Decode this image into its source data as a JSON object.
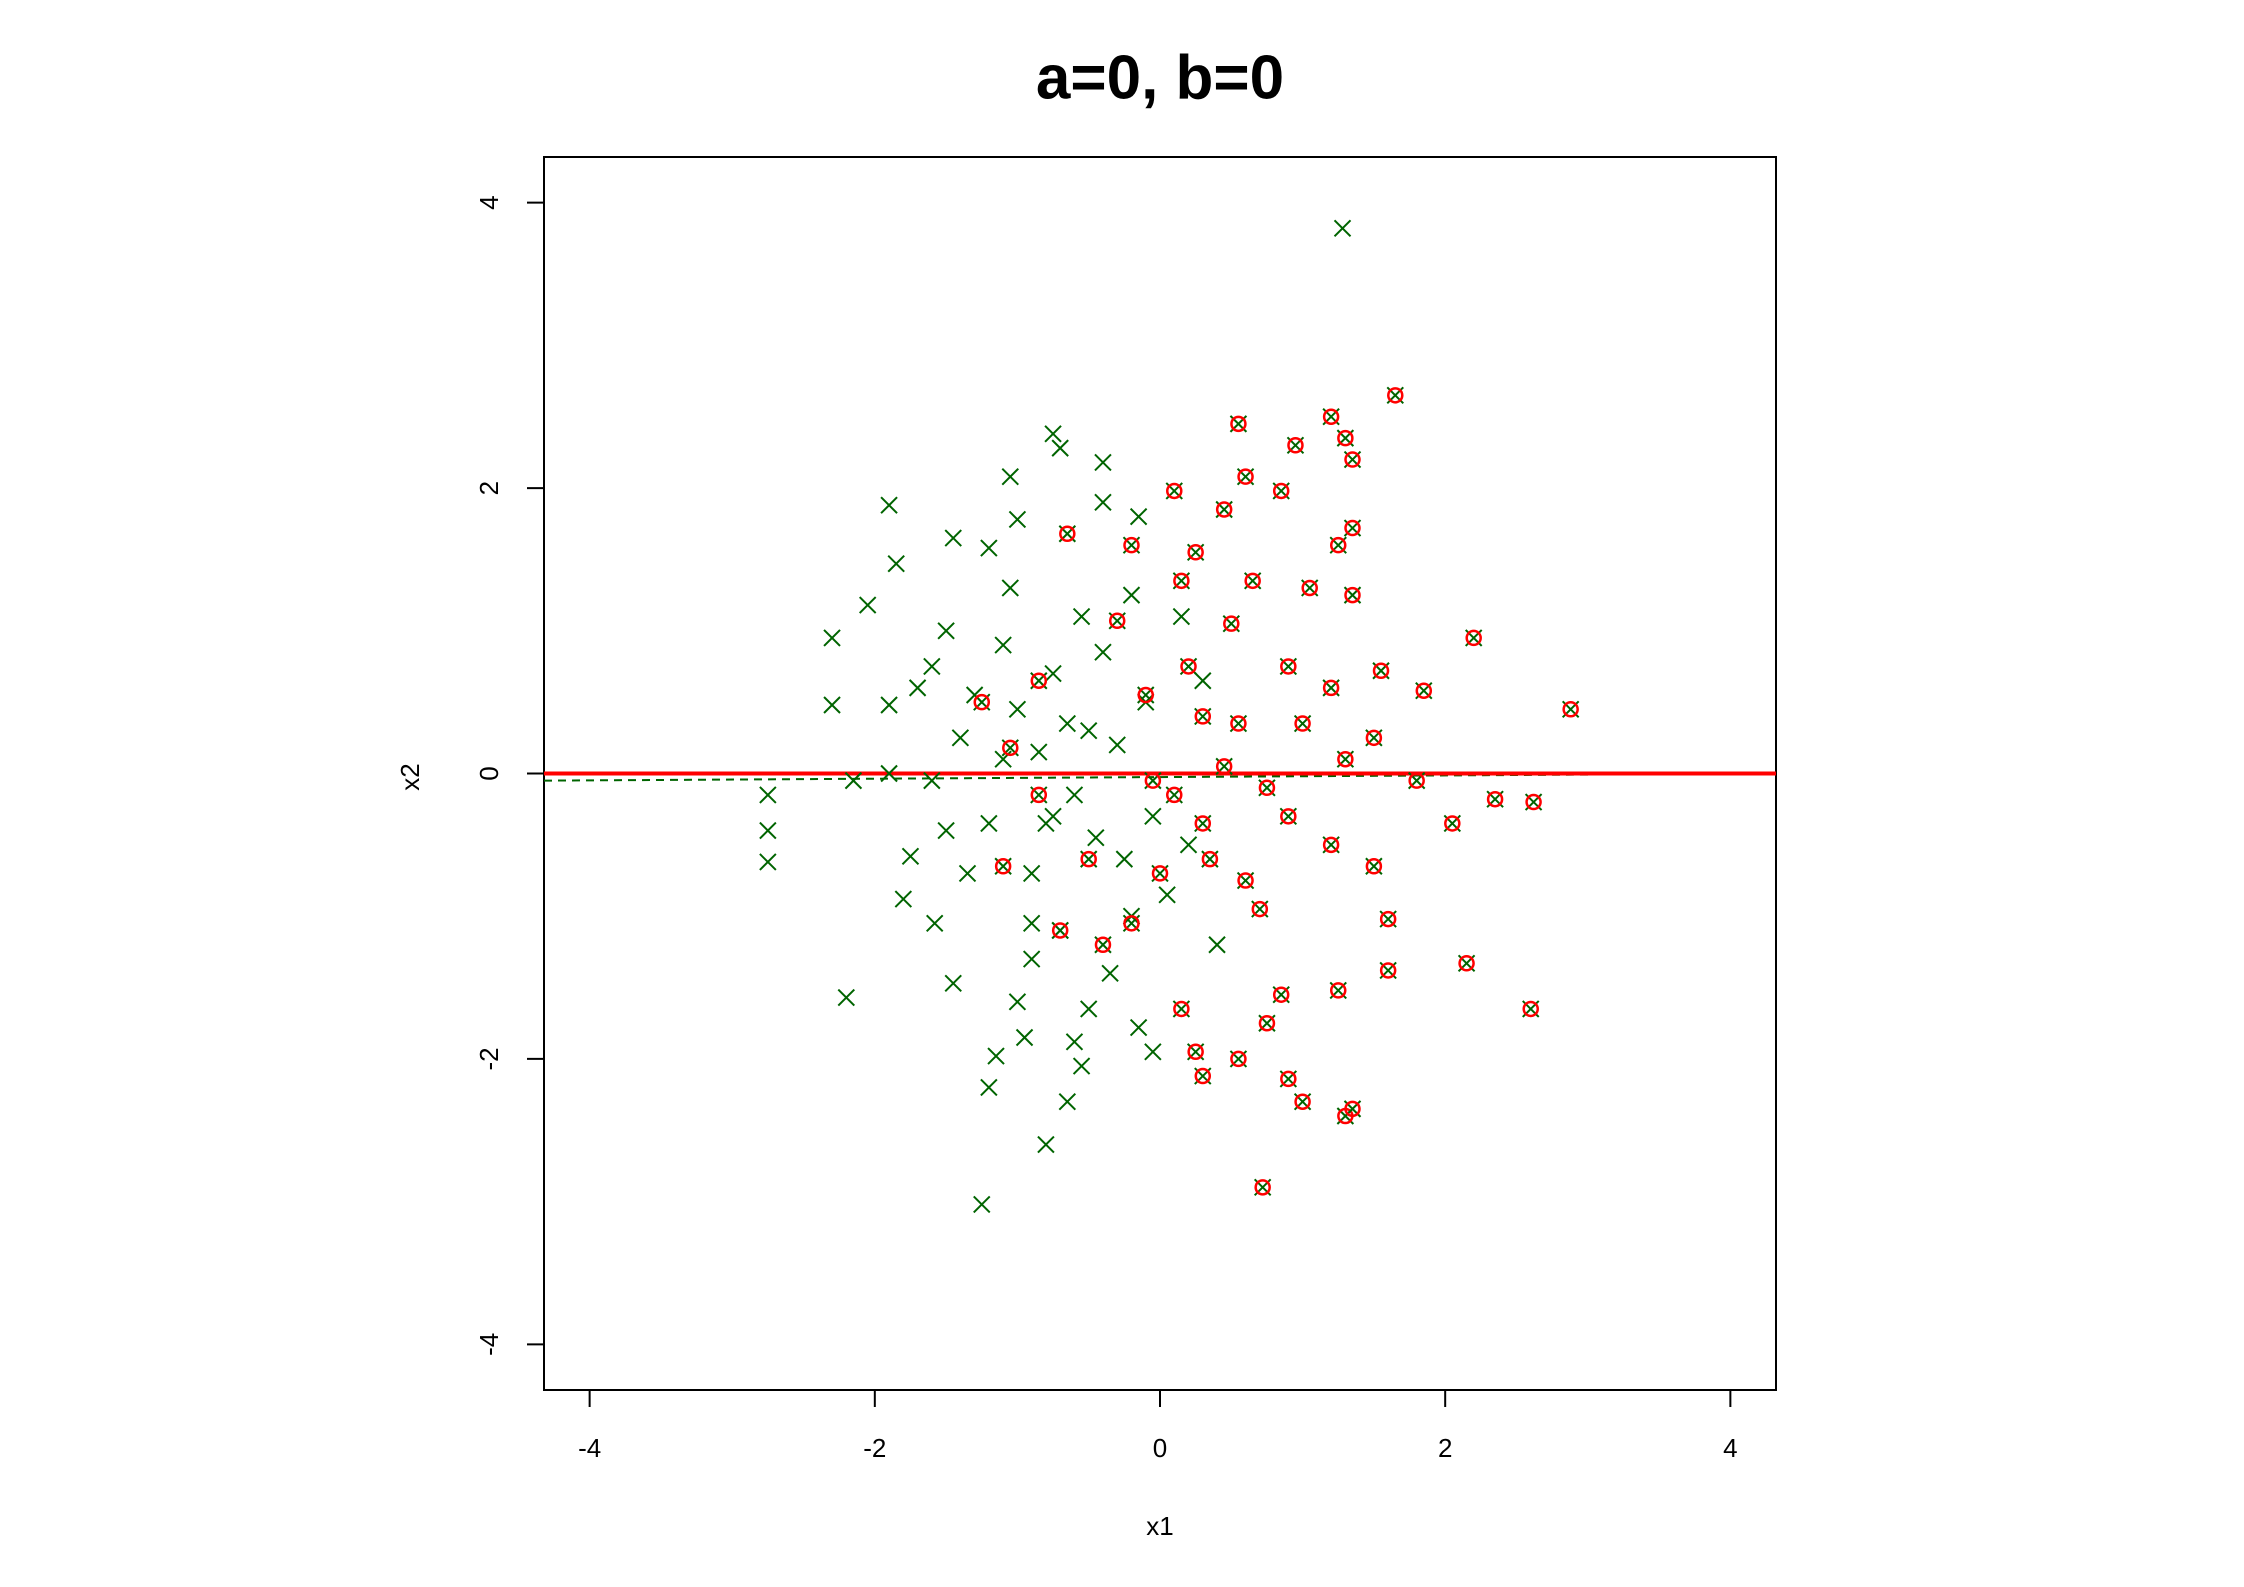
{
  "chart_data": {
    "type": "scatter",
    "title": "a=0, b=0",
    "x_label": "x1",
    "y_label": "x2",
    "xlim": [
      -4.32,
      4.32
    ],
    "ylim": [
      -4.32,
      4.32
    ],
    "xticks": [
      -4,
      -2,
      0,
      2,
      4
    ],
    "yticks": [
      -4,
      -2,
      0,
      2,
      4
    ],
    "series": [
      {
        "color": "#006400",
        "marker": "x",
        "x": [
          -2.75,
          -2.75,
          -2.75,
          -2.3,
          -2.3,
          -2.2,
          -2.05,
          -1.9,
          -1.85,
          -1.9,
          -1.75,
          -1.8,
          -1.6,
          -1.58,
          -1.5,
          -1.45,
          -1.45,
          -1.4,
          -1.35,
          -1.25,
          -1.2,
          -1.2,
          -1.15,
          -1.05,
          -1.05,
          -1.0,
          -0.95,
          -0.9,
          -0.8,
          -0.75,
          -0.7,
          -0.65,
          -0.6,
          -0.55,
          -0.5,
          -0.4,
          -0.4,
          -0.2,
          -0.15,
          -0.15,
          -0.05,
          1.28,
          -1.6,
          -1.5,
          -1.3,
          -1.2,
          -1.1,
          -1.0,
          -0.9,
          -0.85,
          -0.8,
          -0.75,
          -0.7,
          -0.65,
          -0.6,
          -0.55,
          -0.5,
          -0.45,
          -0.4,
          -0.35,
          -0.3,
          -0.25,
          -0.2,
          -0.1,
          -0.05,
          0.05,
          0.15,
          0.2,
          0.3,
          0.4,
          -1.7,
          -1.9,
          -2.15,
          -1.0,
          -0.9,
          -1.1,
          -0.75
        ],
        "values": [
          -0.15,
          -0.4,
          -0.62,
          0.95,
          0.48,
          -1.57,
          1.18,
          1.88,
          1.47,
          0.48,
          -0.58,
          -0.88,
          0.75,
          -1.05,
          1.0,
          1.65,
          -1.47,
          0.25,
          -0.7,
          -3.02,
          -2.2,
          1.58,
          -1.98,
          2.08,
          1.3,
          1.78,
          -1.85,
          -1.3,
          -2.6,
          2.38,
          2.28,
          -2.3,
          -1.88,
          -2.05,
          -1.65,
          2.18,
          1.9,
          -1.0,
          1.8,
          -1.78,
          -1.95,
          3.82,
          -0.05,
          -0.4,
          0.55,
          -0.35,
          0.9,
          0.45,
          -0.7,
          0.15,
          -0.35,
          0.7,
          -1.1,
          0.35,
          -0.15,
          1.1,
          0.3,
          -0.45,
          0.85,
          -1.4,
          0.2,
          -0.6,
          1.25,
          0.5,
          -0.3,
          -0.85,
          1.1,
          -0.5,
          0.65,
          -1.2,
          0.6,
          0.0,
          -0.05,
          -1.6,
          -1.05,
          0.1,
          -0.3
        ]
      },
      {
        "color": "#ff0000",
        "marker": "x-circle",
        "cross_color": "#006400",
        "x": [
          -0.65,
          -0.2,
          0.1,
          0.25,
          0.45,
          0.55,
          0.6,
          0.85,
          0.95,
          1.2,
          1.3,
          1.35,
          1.65,
          1.25,
          1.35,
          1.05,
          1.35,
          0.65,
          0.15,
          -0.3,
          2.2,
          2.88,
          1.85,
          1.55,
          1.5,
          1.2,
          0.9,
          0.55,
          0.2,
          -0.1,
          -0.85,
          -1.05,
          -1.25,
          -1.1,
          -0.85,
          -0.5,
          -0.2,
          0.0,
          0.3,
          0.6,
          0.9,
          1.2,
          1.5,
          1.8,
          2.05,
          2.35,
          2.62,
          2.15,
          2.6,
          1.6,
          1.6,
          1.25,
          0.85,
          0.75,
          0.25,
          0.55,
          0.3,
          0.9,
          1.0,
          1.3,
          1.35,
          0.72,
          0.7,
          0.35,
          0.1,
          0.45,
          0.75,
          1.0,
          1.3,
          -0.4,
          -0.7,
          0.15,
          0.5,
          0.3,
          -0.05
        ],
        "values": [
          1.68,
          1.6,
          1.98,
          1.55,
          1.85,
          2.45,
          2.08,
          1.98,
          2.3,
          2.5,
          2.35,
          2.2,
          2.65,
          1.6,
          1.72,
          1.3,
          1.25,
          1.35,
          1.35,
          1.07,
          0.95,
          0.45,
          0.58,
          0.72,
          0.25,
          0.6,
          0.75,
          0.35,
          0.75,
          0.55,
          0.65,
          0.18,
          0.5,
          -0.65,
          -0.15,
          -0.6,
          -1.05,
          -0.7,
          -0.35,
          -0.75,
          -0.3,
          -0.5,
          -0.65,
          -0.05,
          -0.35,
          -0.18,
          -0.2,
          -1.33,
          -1.65,
          -1.38,
          -1.02,
          -1.52,
          -1.55,
          -1.75,
          -1.95,
          -2.0,
          -2.12,
          -2.14,
          -2.3,
          -2.4,
          -2.35,
          -2.9,
          -0.95,
          -0.6,
          -0.15,
          0.05,
          -0.1,
          0.35,
          0.1,
          -1.2,
          -1.1,
          -1.65,
          1.05,
          0.4,
          -0.05
        ]
      }
    ],
    "lines": [
      {
        "color": "#006400",
        "dashed": true,
        "x": [
          -4.32,
          4.32
        ],
        "values": [
          -0.05,
          0.0
        ]
      },
      {
        "color": "#ff0000",
        "dashed": false,
        "x": [
          -4.32,
          4.32
        ],
        "values": [
          0,
          0
        ]
      }
    ]
  }
}
